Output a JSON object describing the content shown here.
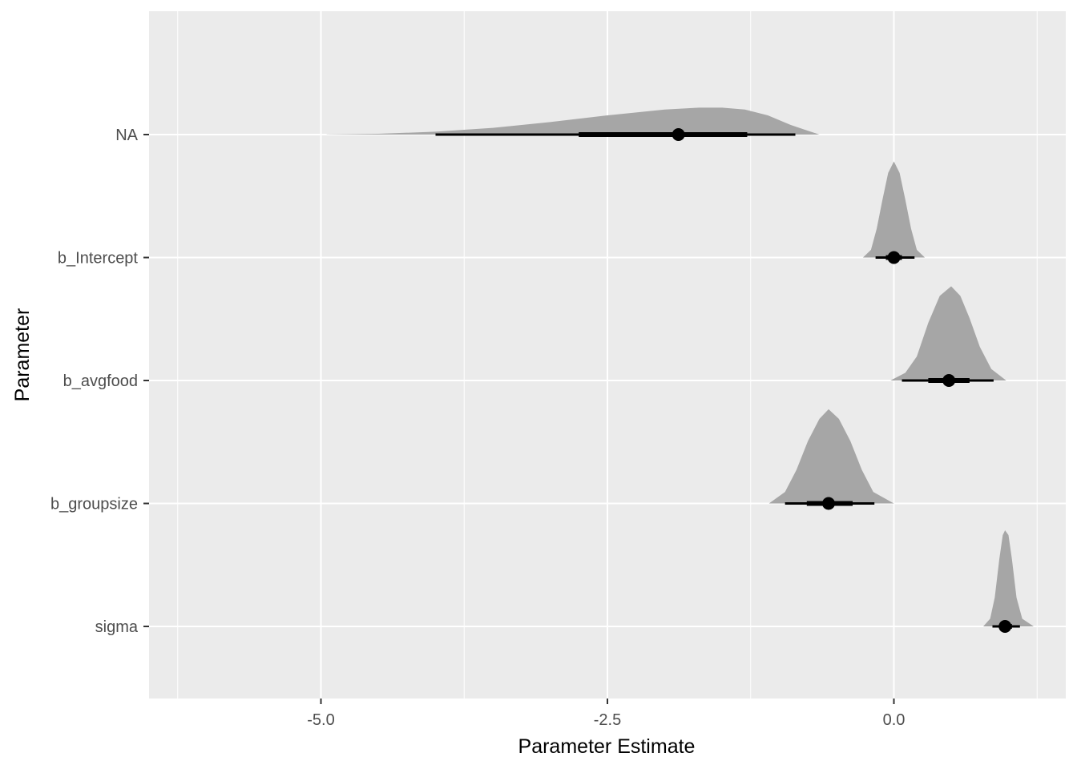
{
  "chart_data": {
    "type": "halfeye",
    "xlabel": "Parameter Estimate",
    "ylabel": "Parameter",
    "xlim": [
      -6.5,
      1.5
    ],
    "x_ticks": [
      -5.0,
      -2.5,
      0.0
    ],
    "x_tick_labels": [
      "-5.0",
      "-2.5",
      "0.0"
    ],
    "x_minor_ticks": [
      -6.25,
      -3.75,
      -1.25,
      1.25
    ],
    "categories": [
      "NA",
      "b_Intercept",
      "b_avgfood",
      "b_groupsize",
      "sigma"
    ],
    "grid": true,
    "series": [
      {
        "name": "NA",
        "median": -1.88,
        "interval_66": [
          -2.75,
          -1.28
        ],
        "interval_95": [
          -4.0,
          -0.86
        ],
        "range": [
          -4.95,
          -0.65
        ],
        "density": [
          [
            -4.95,
            0.002
          ],
          [
            -4.5,
            0.008
          ],
          [
            -4.0,
            0.03
          ],
          [
            -3.5,
            0.07
          ],
          [
            -3.0,
            0.13
          ],
          [
            -2.5,
            0.2
          ],
          [
            -2.0,
            0.26
          ],
          [
            -1.7,
            0.28
          ],
          [
            -1.5,
            0.28
          ],
          [
            -1.3,
            0.26
          ],
          [
            -1.1,
            0.2
          ],
          [
            -0.9,
            0.1
          ],
          [
            -0.75,
            0.04
          ],
          [
            -0.65,
            0.0
          ]
        ]
      },
      {
        "name": "b_Intercept",
        "median": 0.0,
        "interval_66": [
          -0.07,
          0.07
        ],
        "interval_95": [
          -0.16,
          0.18
        ],
        "range": [
          -0.27,
          0.27
        ],
        "density": [
          [
            -0.27,
            0.0
          ],
          [
            -0.2,
            0.08
          ],
          [
            -0.15,
            0.3
          ],
          [
            -0.1,
            0.6
          ],
          [
            -0.05,
            0.88
          ],
          [
            0.0,
            1.0
          ],
          [
            0.05,
            0.88
          ],
          [
            0.1,
            0.6
          ],
          [
            0.15,
            0.3
          ],
          [
            0.2,
            0.08
          ],
          [
            0.27,
            0.0
          ]
        ]
      },
      {
        "name": "b_avgfood",
        "median": 0.48,
        "interval_66": [
          0.3,
          0.66
        ],
        "interval_95": [
          0.07,
          0.87
        ],
        "range": [
          -0.03,
          0.98
        ],
        "density": [
          [
            -0.03,
            0.0
          ],
          [
            0.1,
            0.08
          ],
          [
            0.2,
            0.25
          ],
          [
            0.3,
            0.6
          ],
          [
            0.4,
            0.88
          ],
          [
            0.5,
            0.98
          ],
          [
            0.58,
            0.88
          ],
          [
            0.66,
            0.65
          ],
          [
            0.75,
            0.35
          ],
          [
            0.85,
            0.12
          ],
          [
            0.98,
            0.0
          ]
        ]
      },
      {
        "name": "b_groupsize",
        "median": -0.57,
        "interval_66": [
          -0.76,
          -0.36
        ],
        "interval_95": [
          -0.95,
          -0.17
        ],
        "range": [
          -1.09,
          0.0
        ],
        "density": [
          [
            -1.09,
            0.0
          ],
          [
            -0.95,
            0.12
          ],
          [
            -0.85,
            0.35
          ],
          [
            -0.75,
            0.65
          ],
          [
            -0.65,
            0.88
          ],
          [
            -0.57,
            0.98
          ],
          [
            -0.48,
            0.88
          ],
          [
            -0.38,
            0.65
          ],
          [
            -0.28,
            0.35
          ],
          [
            -0.18,
            0.12
          ],
          [
            0.0,
            0.0
          ]
        ]
      },
      {
        "name": "sigma",
        "median": 0.97,
        "interval_66": [
          0.92,
          1.03
        ],
        "interval_95": [
          0.86,
          1.1
        ],
        "range": [
          0.78,
          1.22
        ],
        "density": [
          [
            0.78,
            0.0
          ],
          [
            0.84,
            0.08
          ],
          [
            0.88,
            0.3
          ],
          [
            0.92,
            0.7
          ],
          [
            0.95,
            0.95
          ],
          [
            0.97,
            1.0
          ],
          [
            1.0,
            0.95
          ],
          [
            1.03,
            0.7
          ],
          [
            1.07,
            0.3
          ],
          [
            1.12,
            0.08
          ],
          [
            1.22,
            0.0
          ]
        ]
      }
    ]
  }
}
